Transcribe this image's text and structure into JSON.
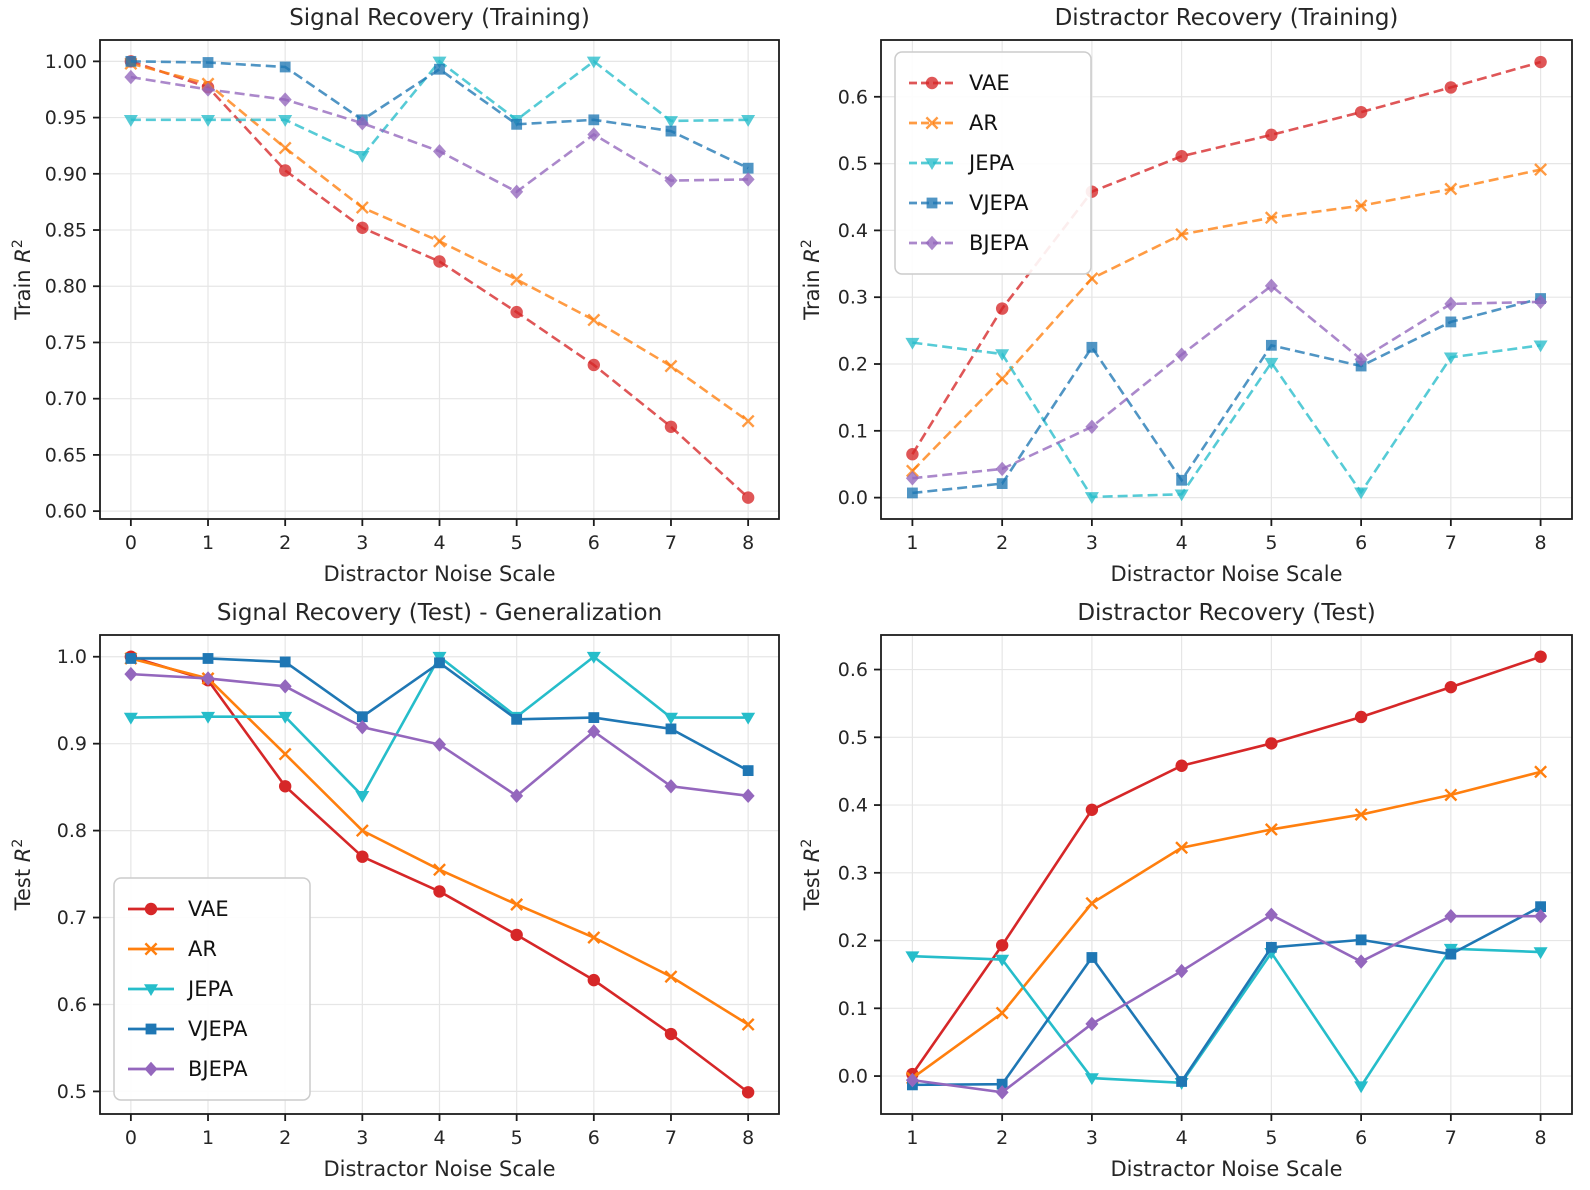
{
  "models": [
    {
      "name": "VAE",
      "color": "#d62728",
      "marker": "circle"
    },
    {
      "name": "AR",
      "color": "#ff7f0e",
      "marker": "x"
    },
    {
      "name": "JEPA",
      "color": "#26bdca",
      "marker": "triangle-down"
    },
    {
      "name": "VJEPA",
      "color": "#1f77b4",
      "marker": "square"
    },
    {
      "name": "BJEPA",
      "color": "#9467bd",
      "marker": "diamond"
    }
  ],
  "chart_data": [
    {
      "id": "signal-recovery-training",
      "type": "line",
      "title": "Signal Recovery (Training)",
      "xlabel": "Distractor Noise Scale",
      "ylabel": "Train R²",
      "line_style": "dashed",
      "grid": true,
      "legend": null,
      "x": [
        0,
        1,
        2,
        3,
        4,
        5,
        6,
        7,
        8
      ],
      "xlim": [
        -0.4,
        8.4
      ],
      "ylim": [
        0.593,
        1.019
      ],
      "xtick_labels": [
        "0",
        "1",
        "2",
        "3",
        "4",
        "5",
        "6",
        "7",
        "8"
      ],
      "yticks": [
        0.6,
        0.65,
        0.7,
        0.75,
        0.8,
        0.85,
        0.9,
        0.95,
        1.0
      ],
      "ytick_labels": [
        "0.60",
        "0.65",
        "0.70",
        "0.75",
        "0.80",
        "0.85",
        "0.90",
        "0.95",
        "1.00"
      ],
      "series": [
        {
          "name": "VAE",
          "values": [
            1.0,
            0.977,
            0.903,
            0.852,
            0.822,
            0.777,
            0.73,
            0.675,
            0.612
          ]
        },
        {
          "name": "AR",
          "values": [
            0.998,
            0.98,
            0.923,
            0.87,
            0.84,
            0.806,
            0.77,
            0.729,
            0.68
          ]
        },
        {
          "name": "JEPA",
          "values": [
            0.948,
            0.948,
            0.948,
            0.916,
            1.0,
            0.948,
            1.0,
            0.947,
            0.948
          ]
        },
        {
          "name": "VJEPA",
          "values": [
            1.0,
            0.999,
            0.995,
            0.948,
            0.993,
            0.944,
            0.948,
            0.938,
            0.905
          ]
        },
        {
          "name": "BJEPA",
          "values": [
            0.986,
            0.975,
            0.966,
            0.945,
            0.92,
            0.884,
            0.935,
            0.894,
            0.895
          ]
        }
      ]
    },
    {
      "id": "distractor-recovery-training",
      "type": "line",
      "title": "Distractor Recovery (Training)",
      "xlabel": "Distractor Noise Scale",
      "ylabel": "Train R²",
      "line_style": "dashed",
      "grid": true,
      "legend": {
        "position": "upper-left",
        "entries": [
          "VAE",
          "AR",
          "JEPA",
          "VJEPA",
          "BJEPA"
        ]
      },
      "x": [
        1,
        2,
        3,
        4,
        5,
        6,
        7,
        8
      ],
      "xlim": [
        0.65,
        8.35
      ],
      "ylim": [
        -0.032,
        0.685
      ],
      "xtick_labels": [
        "1",
        "2",
        "3",
        "4",
        "5",
        "6",
        "7",
        "8"
      ],
      "yticks": [
        0.0,
        0.1,
        0.2,
        0.3,
        0.4,
        0.5,
        0.6
      ],
      "ytick_labels": [
        "0.0",
        "0.1",
        "0.2",
        "0.3",
        "0.4",
        "0.5",
        "0.6"
      ],
      "series": [
        {
          "name": "VAE",
          "values": [
            0.065,
            0.283,
            0.458,
            0.511,
            0.543,
            0.577,
            0.614,
            0.652
          ]
        },
        {
          "name": "AR",
          "values": [
            0.04,
            0.178,
            0.328,
            0.394,
            0.419,
            0.437,
            0.462,
            0.491
          ]
        },
        {
          "name": "JEPA",
          "values": [
            0.232,
            0.215,
            0.001,
            0.005,
            0.202,
            0.008,
            0.21,
            0.228
          ]
        },
        {
          "name": "VJEPA",
          "values": [
            0.007,
            0.021,
            0.225,
            0.026,
            0.228,
            0.197,
            0.263,
            0.298
          ]
        },
        {
          "name": "BJEPA",
          "values": [
            0.029,
            0.043,
            0.106,
            0.214,
            0.317,
            0.207,
            0.29,
            0.293
          ]
        }
      ]
    },
    {
      "id": "signal-recovery-test",
      "type": "line",
      "title": "Signal Recovery (Test) - Generalization",
      "xlabel": "Distractor Noise Scale",
      "ylabel": "Test R²",
      "line_style": "solid",
      "grid": true,
      "legend": {
        "position": "lower-left",
        "entries": [
          "VAE",
          "AR",
          "JEPA",
          "VJEPA",
          "BJEPA"
        ]
      },
      "x": [
        0,
        1,
        2,
        3,
        4,
        5,
        6,
        7,
        8
      ],
      "xlim": [
        -0.4,
        8.4
      ],
      "ylim": [
        0.474,
        1.025
      ],
      "xtick_labels": [
        "0",
        "1",
        "2",
        "3",
        "4",
        "5",
        "6",
        "7",
        "8"
      ],
      "yticks": [
        0.5,
        0.6,
        0.7,
        0.8,
        0.9,
        1.0
      ],
      "ytick_labels": [
        "0.5",
        "0.6",
        "0.7",
        "0.8",
        "0.9",
        "1.0"
      ],
      "series": [
        {
          "name": "VAE",
          "values": [
            1.0,
            0.973,
            0.851,
            0.77,
            0.73,
            0.68,
            0.628,
            0.566,
            0.499
          ]
        },
        {
          "name": "AR",
          "values": [
            0.998,
            0.975,
            0.888,
            0.8,
            0.755,
            0.715,
            0.677,
            0.632,
            0.577
          ]
        },
        {
          "name": "JEPA",
          "values": [
            0.93,
            0.931,
            0.931,
            0.84,
            1.0,
            0.931,
            1.0,
            0.93,
            0.93
          ]
        },
        {
          "name": "VJEPA",
          "values": [
            0.998,
            0.998,
            0.994,
            0.931,
            0.993,
            0.928,
            0.93,
            0.917,
            0.869
          ]
        },
        {
          "name": "BJEPA",
          "values": [
            0.98,
            0.975,
            0.966,
            0.919,
            0.899,
            0.84,
            0.914,
            0.851,
            0.84
          ]
        }
      ]
    },
    {
      "id": "distractor-recovery-test",
      "type": "line",
      "title": "Distractor Recovery (Test)",
      "xlabel": "Distractor Noise Scale",
      "ylabel": "Test R²",
      "line_style": "solid",
      "grid": true,
      "legend": null,
      "x": [
        1,
        2,
        3,
        4,
        5,
        6,
        7,
        8
      ],
      "xlim": [
        0.65,
        8.35
      ],
      "ylim": [
        -0.056,
        0.651
      ],
      "xtick_labels": [
        "1",
        "2",
        "3",
        "4",
        "5",
        "6",
        "7",
        "8"
      ],
      "yticks": [
        0.0,
        0.1,
        0.2,
        0.3,
        0.4,
        0.5,
        0.6
      ],
      "ytick_labels": [
        "0.0",
        "0.1",
        "0.2",
        "0.3",
        "0.4",
        "0.5",
        "0.6"
      ],
      "series": [
        {
          "name": "VAE",
          "values": [
            0.003,
            0.193,
            0.393,
            0.458,
            0.491,
            0.53,
            0.574,
            0.619
          ]
        },
        {
          "name": "AR",
          "values": [
            -0.003,
            0.093,
            0.255,
            0.337,
            0.364,
            0.386,
            0.415,
            0.449
          ]
        },
        {
          "name": "JEPA",
          "values": [
            0.177,
            0.172,
            -0.003,
            -0.01,
            0.182,
            -0.015,
            0.188,
            0.183
          ]
        },
        {
          "name": "VJEPA",
          "values": [
            -0.013,
            -0.012,
            0.175,
            -0.008,
            0.19,
            0.201,
            0.18,
            0.25
          ]
        },
        {
          "name": "BJEPA",
          "values": [
            -0.006,
            -0.024,
            0.077,
            0.155,
            0.238,
            0.169,
            0.236,
            0.236
          ]
        }
      ]
    }
  ]
}
